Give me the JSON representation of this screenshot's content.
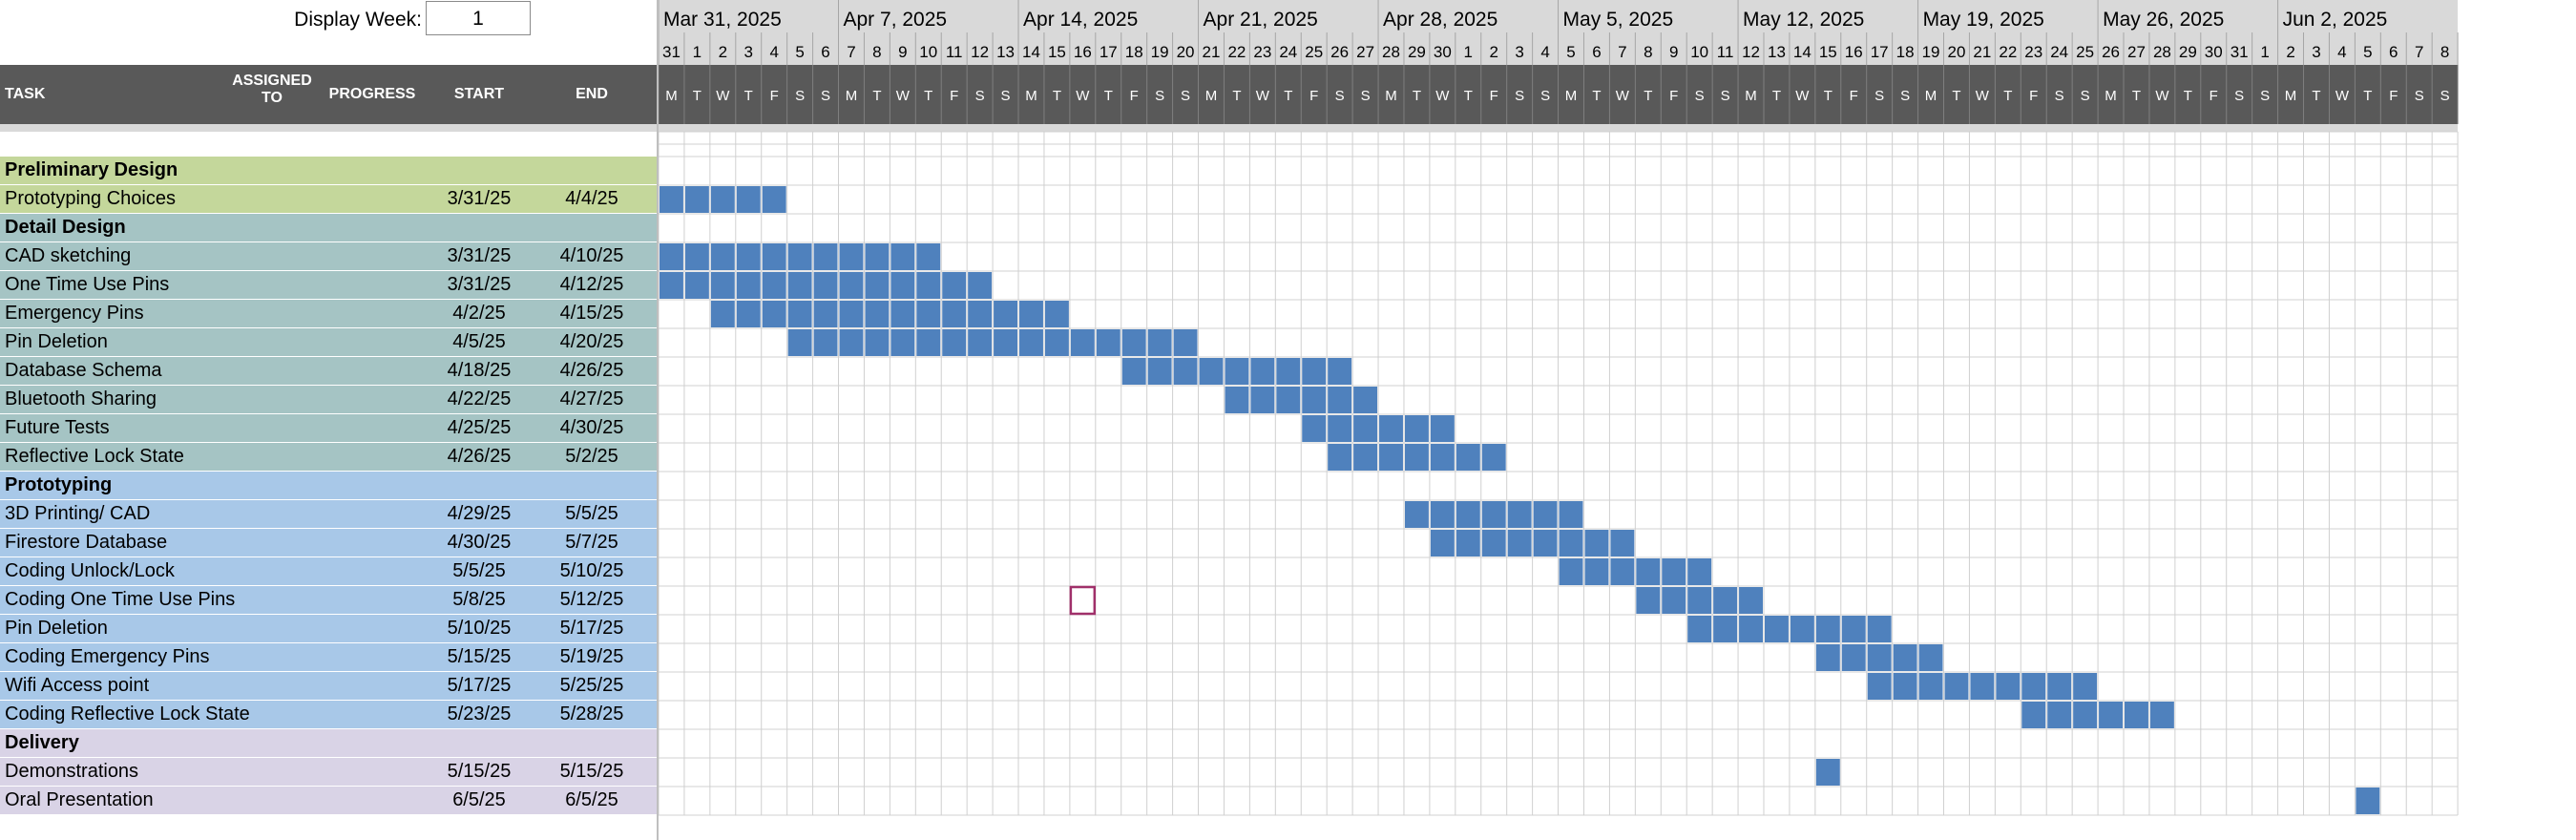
{
  "display_week": {
    "label": "Display Week:",
    "value": "1"
  },
  "columns": {
    "task": "TASK",
    "assigned_line1": "ASSIGNED",
    "assigned_line2": "TO",
    "progress": "PROGRESS",
    "start": "START",
    "end": "END"
  },
  "week_labels": [
    "Mar 31, 2025",
    "Apr 7, 2025",
    "Apr 14, 2025",
    "Apr 21, 2025",
    "Apr 28, 2025",
    "May 5, 2025",
    "May 12, 2025",
    "May 19, 2025",
    "May 26, 2025",
    "Jun 2, 2025"
  ],
  "day_numbers": [
    "31",
    "1",
    "2",
    "3",
    "4",
    "5",
    "6",
    "7",
    "8",
    "9",
    "10",
    "11",
    "12",
    "13",
    "14",
    "15",
    "16",
    "17",
    "18",
    "19",
    "20",
    "21",
    "22",
    "23",
    "24",
    "25",
    "26",
    "27",
    "28",
    "29",
    "30",
    "1",
    "2",
    "3",
    "4",
    "5",
    "6",
    "7",
    "8",
    "9",
    "10",
    "11",
    "12",
    "13",
    "14",
    "15",
    "16",
    "17",
    "18",
    "19",
    "20",
    "21",
    "22",
    "23",
    "24",
    "25",
    "26",
    "27",
    "28",
    "29",
    "30",
    "31",
    "1",
    "2",
    "3",
    "4",
    "5",
    "6",
    "7",
    "8"
  ],
  "weekday_letters": [
    "M",
    "T",
    "W",
    "T",
    "F",
    "S",
    "S"
  ],
  "colors": {
    "header_dark": "#595959",
    "date_header_bg": "#d9d9d9",
    "bar": "#4f81bd",
    "phase1_bg": "#c4d79b",
    "phase2_bg": "#a5c4c4",
    "phase3_bg": "#a8c8e8",
    "phase4_bg": "#d9d3e6",
    "grid_line": "#d0d0d0",
    "marker": "#a0306a"
  },
  "rows": [
    {
      "type": "phase",
      "task": "Preliminary Design",
      "start": "",
      "end": "",
      "phase": 1
    },
    {
      "type": "task",
      "task": "Prototyping Choices",
      "start": "3/31/25",
      "end": "4/4/25",
      "phase": 1,
      "bar_start_day": 0,
      "bar_end_day": 4
    },
    {
      "type": "phase",
      "task": "Detail Design",
      "start": "",
      "end": "",
      "phase": 2
    },
    {
      "type": "task",
      "task": "CAD sketching",
      "start": "3/31/25",
      "end": "4/10/25",
      "phase": 2,
      "bar_start_day": 0,
      "bar_end_day": 10
    },
    {
      "type": "task",
      "task": "One Time Use Pins",
      "start": "3/31/25",
      "end": "4/12/25",
      "phase": 2,
      "bar_start_day": 0,
      "bar_end_day": 12
    },
    {
      "type": "task",
      "task": "Emergency Pins",
      "start": "4/2/25",
      "end": "4/15/25",
      "phase": 2,
      "bar_start_day": 2,
      "bar_end_day": 15
    },
    {
      "type": "task",
      "task": "Pin Deletion",
      "start": "4/5/25",
      "end": "4/20/25",
      "phase": 2,
      "bar_start_day": 5,
      "bar_end_day": 20
    },
    {
      "type": "task",
      "task": "Database Schema",
      "start": "4/18/25",
      "end": "4/26/25",
      "phase": 2,
      "bar_start_day": 18,
      "bar_end_day": 26
    },
    {
      "type": "task",
      "task": "Bluetooth Sharing",
      "start": "4/22/25",
      "end": "4/27/25",
      "phase": 2,
      "bar_start_day": 22,
      "bar_end_day": 27
    },
    {
      "type": "task",
      "task": "Future Tests",
      "start": "4/25/25",
      "end": "4/30/25",
      "phase": 2,
      "bar_start_day": 25,
      "bar_end_day": 30
    },
    {
      "type": "task",
      "task": "Reflective Lock State",
      "start": "4/26/25",
      "end": "5/2/25",
      "phase": 2,
      "bar_start_day": 26,
      "bar_end_day": 32
    },
    {
      "type": "phase",
      "task": "Prototyping",
      "start": "",
      "end": "",
      "phase": 3
    },
    {
      "type": "task",
      "task": "3D Printing/ CAD",
      "start": "4/29/25",
      "end": "5/5/25",
      "phase": 3,
      "bar_start_day": 29,
      "bar_end_day": 35
    },
    {
      "type": "task",
      "task": "Firestore Database",
      "start": "4/30/25",
      "end": "5/7/25",
      "phase": 3,
      "bar_start_day": 30,
      "bar_end_day": 37
    },
    {
      "type": "task",
      "task": "Coding Unlock/Lock",
      "start": "5/5/25",
      "end": "5/10/25",
      "phase": 3,
      "bar_start_day": 35,
      "bar_end_day": 40
    },
    {
      "type": "task",
      "task": "Coding One Time Use Pins",
      "start": "5/8/25",
      "end": "5/12/25",
      "phase": 3,
      "bar_start_day": 38,
      "bar_end_day": 42
    },
    {
      "type": "task",
      "task": "Pin Deletion",
      "start": "5/10/25",
      "end": "5/17/25",
      "phase": 3,
      "bar_start_day": 40,
      "bar_end_day": 47
    },
    {
      "type": "task",
      "task": "Coding Emergency Pins",
      "start": "5/15/25",
      "end": "5/19/25",
      "phase": 3,
      "bar_start_day": 45,
      "bar_end_day": 49
    },
    {
      "type": "task",
      "task": "Wifi Access point",
      "start": "5/17/25",
      "end": "5/25/25",
      "phase": 3,
      "bar_start_day": 47,
      "bar_end_day": 55
    },
    {
      "type": "task",
      "task": "Coding Reflective Lock State",
      "start": "5/23/25",
      "end": "5/28/25",
      "phase": 3,
      "bar_start_day": 53,
      "bar_end_day": 58
    },
    {
      "type": "phase",
      "task": "Delivery",
      "start": "",
      "end": "",
      "phase": 4
    },
    {
      "type": "task",
      "task": "Demonstrations",
      "start": "5/15/25",
      "end": "5/15/25",
      "phase": 4,
      "bar_start_day": 45,
      "bar_end_day": 45
    },
    {
      "type": "task",
      "task": "Oral Presentation",
      "start": "6/5/25",
      "end": "6/5/25",
      "phase": 4,
      "bar_start_day": 66,
      "bar_end_day": 66
    }
  ],
  "selected_cell": {
    "row": 15,
    "day": 16
  }
}
